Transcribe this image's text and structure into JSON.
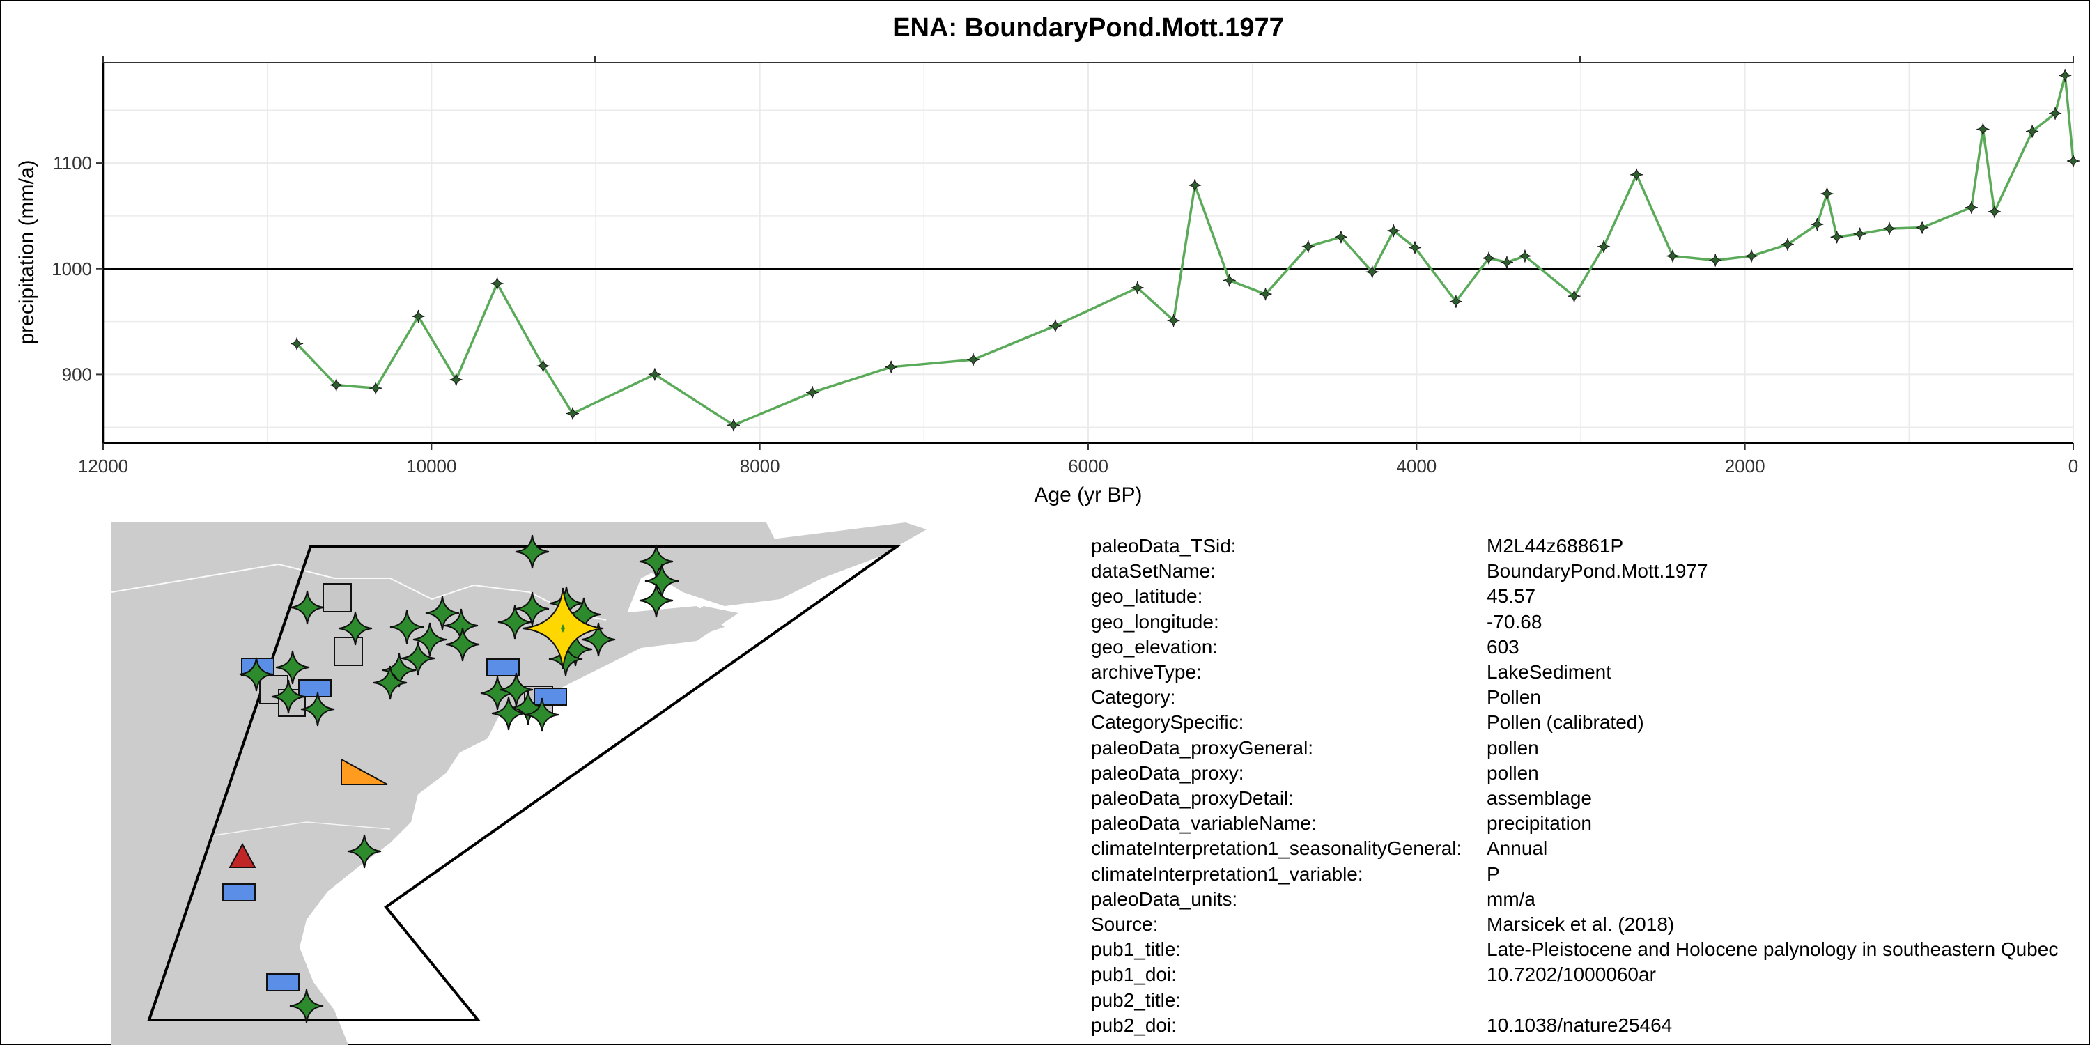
{
  "chart_data": {
    "type": "line",
    "title": "ENA: BoundaryPond.Mott.1977",
    "xlabel": "Age (yr BP)",
    "ylabel": "precipitation (mm/a)",
    "x_reversed": true,
    "xlim": [
      12000,
      0
    ],
    "ylim": [
      835,
      1195
    ],
    "x_ticks": [
      12000,
      10000,
      8000,
      6000,
      4000,
      2000,
      0
    ],
    "x_tick_labels": [
      "12000",
      "10000",
      "8000",
      "6000",
      "4000",
      "2000",
      "0"
    ],
    "y_ticks": [
      900,
      1000,
      1100
    ],
    "y_tick_labels": [
      "900",
      "1000",
      "1100"
    ],
    "reference_line": 1000,
    "grid": true,
    "line_color": "#5aaa5a",
    "marker_color": "#2e5e2e",
    "series": [
      {
        "x": [
          10820,
          10580,
          10340,
          10080,
          9850,
          9600,
          9320,
          9140,
          8640,
          8160,
          7680,
          7200,
          6700,
          6200,
          5700,
          5480,
          5350,
          5140,
          4920,
          4660,
          4460,
          4270,
          4140,
          4010,
          3760,
          3560,
          3450,
          3340,
          3040,
          2860,
          2660,
          2440,
          2180,
          1960,
          1740,
          1560,
          1500,
          1440,
          1300,
          1120,
          920,
          620,
          550,
          480,
          250,
          110,
          50,
          0
        ],
        "y": [
          929,
          890,
          887,
          955,
          895,
          986,
          908,
          863,
          900,
          852,
          883,
          907,
          914,
          946,
          982,
          951,
          1079,
          989,
          976,
          1021,
          1030,
          997,
          1036,
          1020,
          969,
          1010,
          1006,
          1012,
          974,
          1021,
          1089,
          1012,
          1008,
          1012,
          1023,
          1042,
          1071,
          1030,
          1033,
          1038,
          1039,
          1058,
          1132,
          1054,
          1130,
          1147,
          1183,
          1102
        ]
      }
    ]
  },
  "map": {
    "land_color": "#cccccc",
    "highlight_color": "#ffd700",
    "marker_green": "#2d8a2d",
    "marker_blue": "#5b8ee6",
    "marker_gray": "#c8c8c8",
    "marker_orange": "#ff9b1f",
    "marker_red": "#c02626",
    "icons": [
      "star-marker",
      "square-marker",
      "rectangle-marker",
      "triangle-marker"
    ]
  },
  "metadata": [
    {
      "key": "paleoData_TSid:",
      "value": "M2L44z68861P"
    },
    {
      "key": "dataSetName:",
      "value": "BoundaryPond.Mott.1977"
    },
    {
      "key": "geo_latitude:",
      "value": "45.57"
    },
    {
      "key": "geo_longitude:",
      "value": "-70.68"
    },
    {
      "key": "geo_elevation:",
      "value": "603"
    },
    {
      "key": "archiveType:",
      "value": "LakeSediment"
    },
    {
      "key": "Category:",
      "value": "Pollen"
    },
    {
      "key": "CategorySpecific:",
      "value": "Pollen (calibrated)"
    },
    {
      "key": "paleoData_proxyGeneral:",
      "value": "pollen"
    },
    {
      "key": "paleoData_proxy:",
      "value": "pollen"
    },
    {
      "key": "paleoData_proxyDetail:",
      "value": "assemblage"
    },
    {
      "key": "paleoData_variableName:",
      "value": "precipitation"
    },
    {
      "key": "climateInterpretation1_seasonalityGeneral:",
      "value": "Annual"
    },
    {
      "key": "climateInterpretation1_variable:",
      "value": "P"
    },
    {
      "key": "paleoData_units:",
      "value": "mm/a"
    },
    {
      "key": "Source:",
      "value": "Marsicek et al. (2018)"
    },
    {
      "key": "pub1_title:",
      "value": "Late-Pleistocene and Holocene palynology in southeastern Qubec"
    },
    {
      "key": "pub1_doi:",
      "value": "10.7202/1000060ar"
    },
    {
      "key": "pub2_title:",
      "value": ""
    },
    {
      "key": "pub2_doi:",
      "value": "10.1038/nature25464"
    }
  ]
}
